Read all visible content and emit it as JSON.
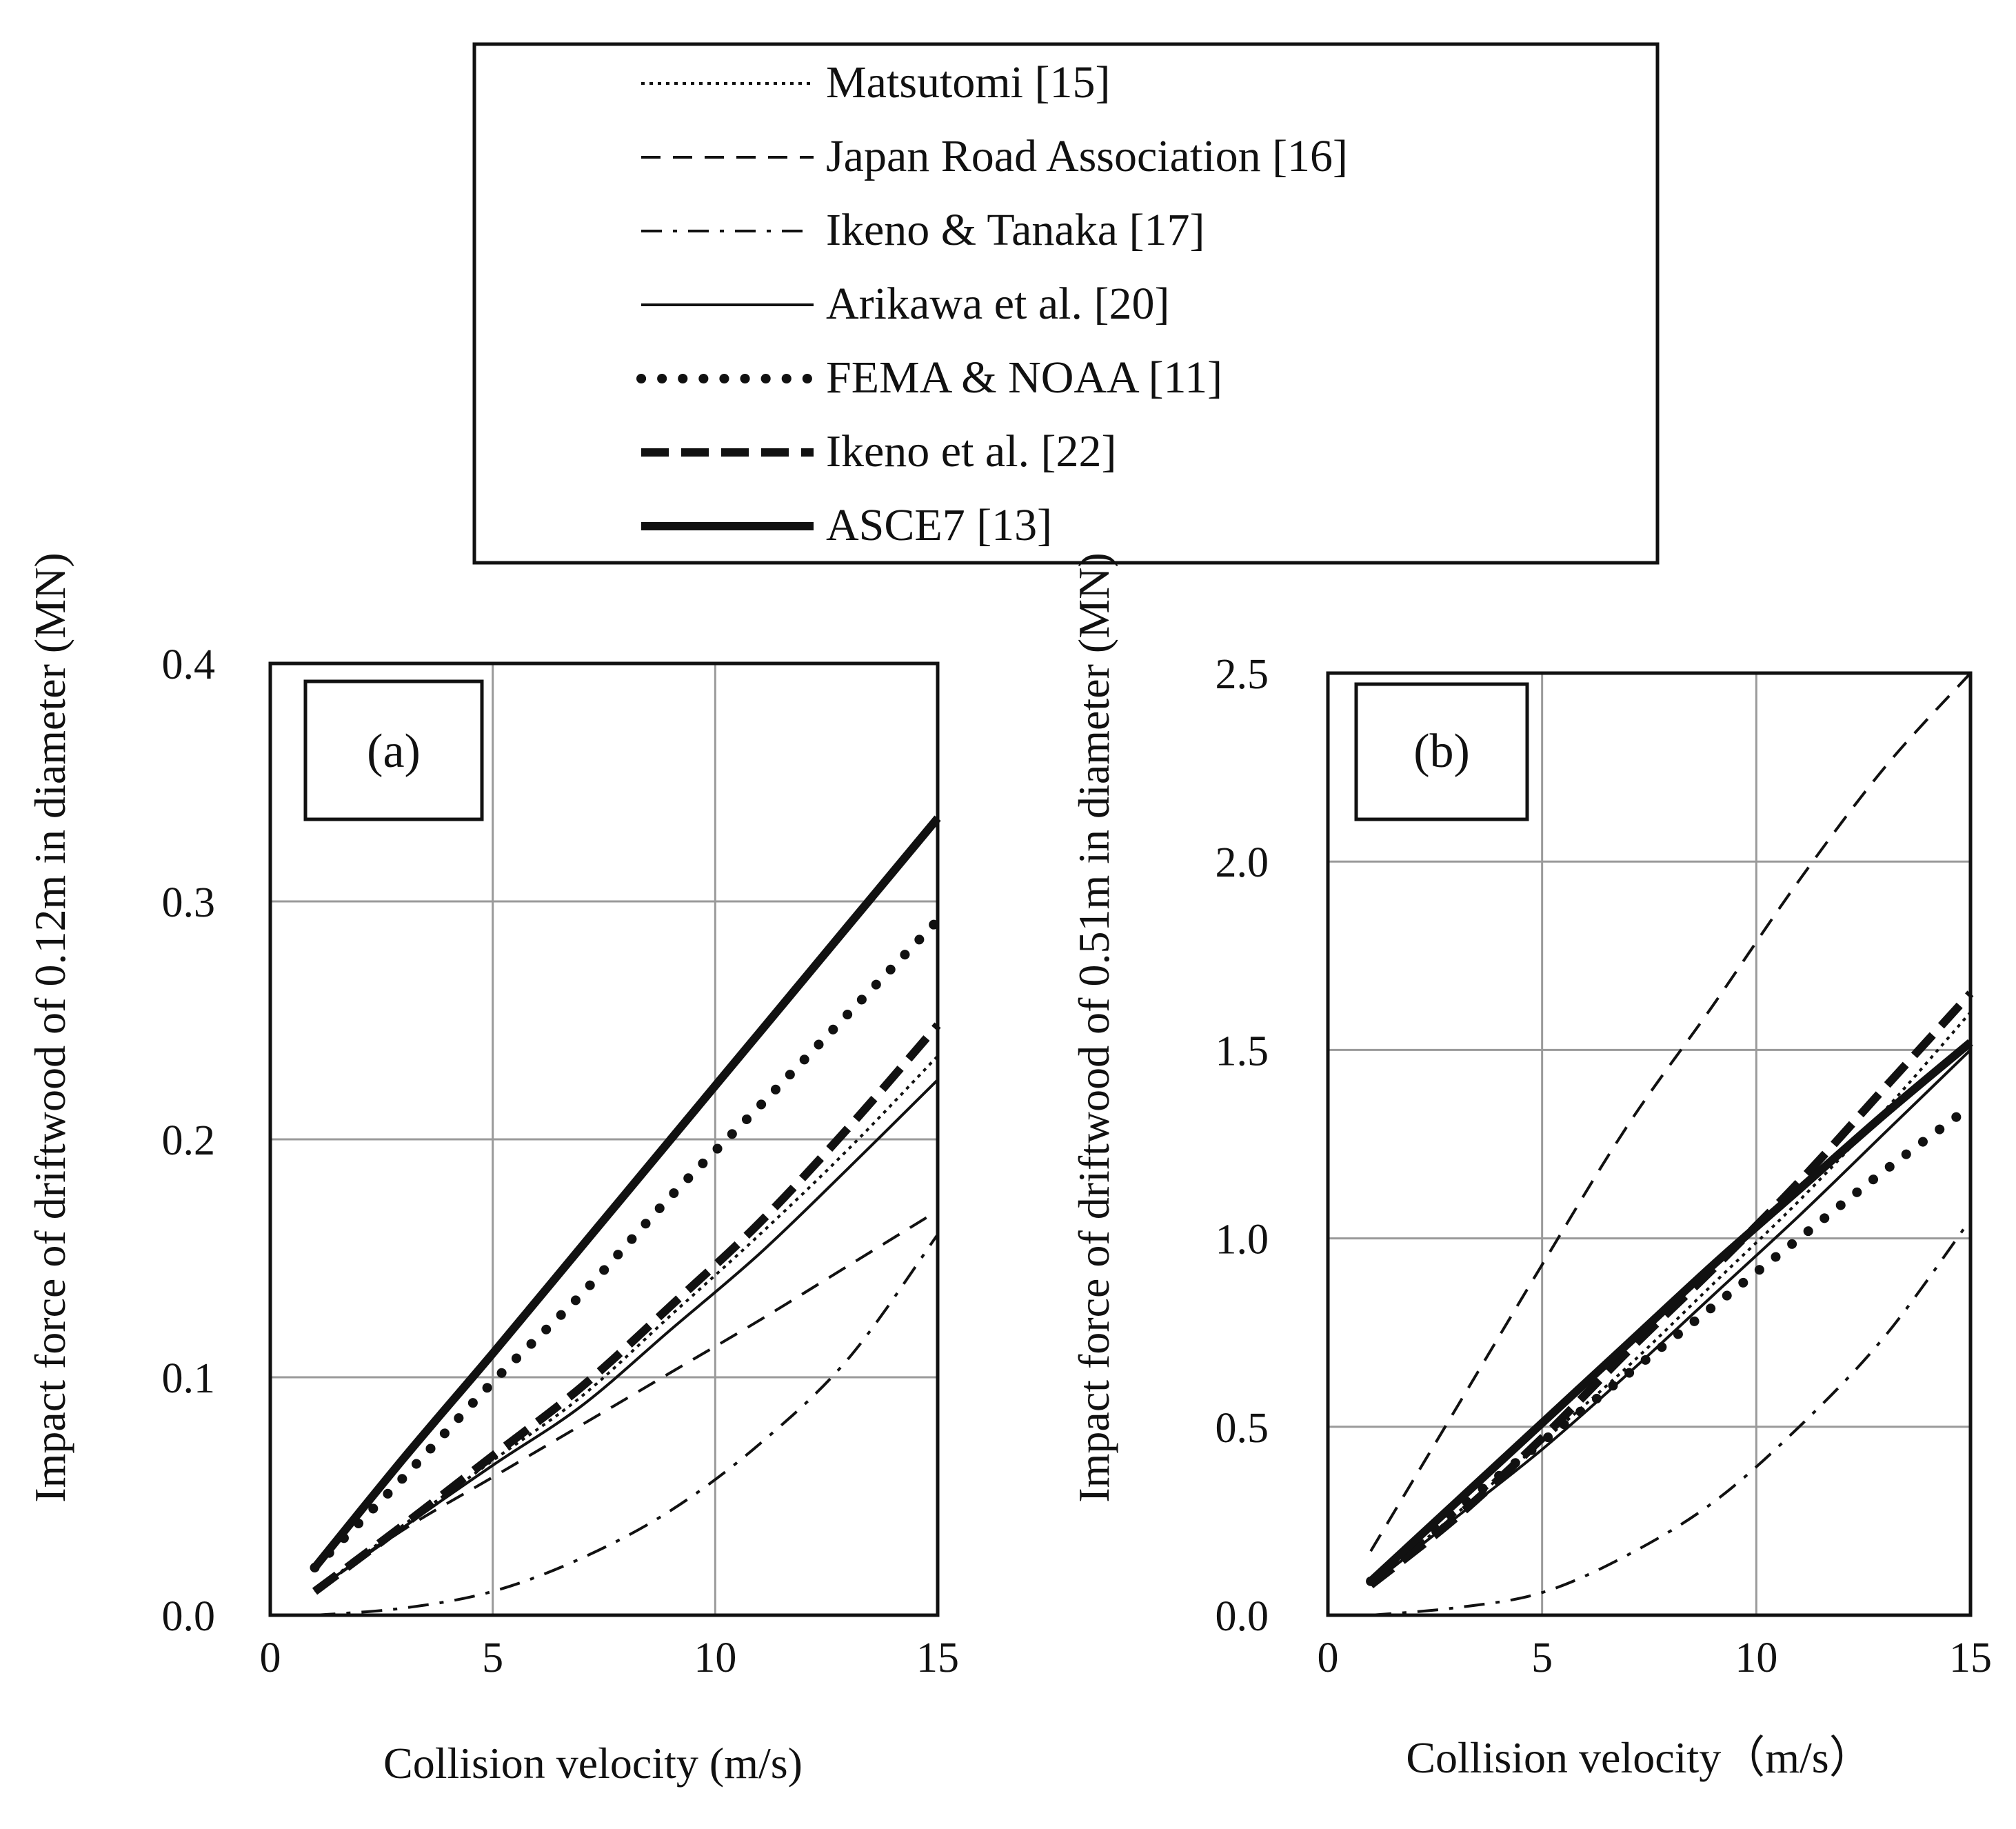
{
  "legend": {
    "entries": [
      {
        "key": "matsutomi",
        "label": "Matsutomi [15]",
        "style": "dotted-thin"
      },
      {
        "key": "jra",
        "label": "Japan Road Association [16]",
        "style": "dashed-thin"
      },
      {
        "key": "ikeno_tanaka",
        "label": "Ikeno & Tanaka [17]",
        "style": "dashdot-thin"
      },
      {
        "key": "arikawa",
        "label": "Arikawa et al. [20]",
        "style": "solid-thin"
      },
      {
        "key": "fema",
        "label": "FEMA & NOAA [11]",
        "style": "dotted-thick"
      },
      {
        "key": "ikeno",
        "label": "Ikeno et al. [22]",
        "style": "dashed-thick"
      },
      {
        "key": "asce7",
        "label": "ASCE7 [13]",
        "style": "solid-thick"
      }
    ]
  },
  "chart_data": [
    {
      "type": "line",
      "panel_label": "(a)",
      "title": "",
      "xlabel": "Collision velocity (m/s)",
      "ylabel": "Impact force of driftwood of  0.12m in diameter (MN)",
      "xlim": [
        0,
        15
      ],
      "ylim": [
        0,
        0.4
      ],
      "xticks": [
        "0",
        "5",
        "10",
        "15"
      ],
      "yticks": [
        "0.0",
        "0.1",
        "0.2",
        "0.3",
        "0.4"
      ],
      "grid": true,
      "x": [
        1,
        3,
        5,
        7,
        9,
        11,
        13,
        15
      ],
      "series": [
        {
          "name": "Matsutomi [15]",
          "key": "matsutomi",
          "values": [
            0.01,
            0.038,
            0.065,
            0.092,
            0.126,
            0.16,
            0.196,
            0.235
          ]
        },
        {
          "name": "Japan Road Association [16]",
          "key": "jra",
          "values": [
            0.01,
            0.036,
            0.058,
            0.08,
            0.102,
            0.124,
            0.147,
            0.17
          ]
        },
        {
          "name": "Ikeno & Tanaka [17]",
          "key": "ikeno_tanaka",
          "values": [
            0.0,
            0.003,
            0.01,
            0.024,
            0.044,
            0.072,
            0.108,
            0.16
          ]
        },
        {
          "name": "Arikawa et al. [20]",
          "key": "arikawa",
          "values": [
            0.01,
            0.037,
            0.063,
            0.088,
            0.12,
            0.152,
            0.188,
            0.225
          ]
        },
        {
          "name": "FEMA & NOAA [11]",
          "key": "fema",
          "values": [
            0.02,
            0.058,
            0.098,
            0.135,
            0.176,
            0.214,
            0.253,
            0.292
          ]
        },
        {
          "name": "Ikeno et al. [22]",
          "key": "ikeno",
          "values": [
            0.01,
            0.038,
            0.067,
            0.096,
            0.13,
            0.165,
            0.205,
            0.248
          ]
        },
        {
          "name": "ASCE7 [13]",
          "key": "asce7",
          "values": [
            0.02,
            0.066,
            0.11,
            0.155,
            0.2,
            0.245,
            0.29,
            0.335
          ]
        }
      ]
    },
    {
      "type": "line",
      "panel_label": "(b)",
      "title": "",
      "xlabel": "Collision velocity（m/s）",
      "ylabel": "Impact force of driftwood of 0.51m in diameter (MN)",
      "xlim": [
        0,
        15
      ],
      "ylim": [
        0,
        2.5
      ],
      "xticks": [
        "0",
        "5",
        "10",
        "15"
      ],
      "yticks": [
        "0.0",
        "0.5",
        "1.0",
        "1.5",
        "2.0",
        "2.5"
      ],
      "grid": true,
      "x": [
        1,
        3,
        5,
        7,
        9,
        11,
        13,
        15
      ],
      "series": [
        {
          "name": "Matsutomi [15]",
          "key": "matsutomi",
          "values": [
            0.08,
            0.27,
            0.46,
            0.66,
            0.88,
            1.1,
            1.34,
            1.6
          ]
        },
        {
          "name": "Japan Road Association [16]",
          "key": "jra",
          "values": [
            0.17,
            0.55,
            0.93,
            1.3,
            1.62,
            1.95,
            2.25,
            2.5
          ]
        },
        {
          "name": "Ikeno & Tanaka [17]",
          "key": "ikeno_tanaka",
          "values": [
            0.0,
            0.02,
            0.06,
            0.16,
            0.3,
            0.5,
            0.74,
            1.05
          ]
        },
        {
          "name": "Arikawa et al. [20]",
          "key": "arikawa",
          "values": [
            0.08,
            0.26,
            0.44,
            0.64,
            0.85,
            1.06,
            1.28,
            1.5
          ]
        },
        {
          "name": "FEMA & NOAA [11]",
          "key": "fema",
          "values": [
            0.09,
            0.28,
            0.46,
            0.64,
            0.82,
            1.0,
            1.18,
            1.35
          ]
        },
        {
          "name": "Ikeno et al. [22]",
          "key": "ikeno",
          "values": [
            0.08,
            0.26,
            0.47,
            0.7,
            0.92,
            1.15,
            1.4,
            1.65
          ]
        },
        {
          "name": "ASCE7 [13]",
          "key": "asce7",
          "values": [
            0.09,
            0.3,
            0.51,
            0.72,
            0.93,
            1.13,
            1.33,
            1.52
          ]
        }
      ]
    }
  ]
}
